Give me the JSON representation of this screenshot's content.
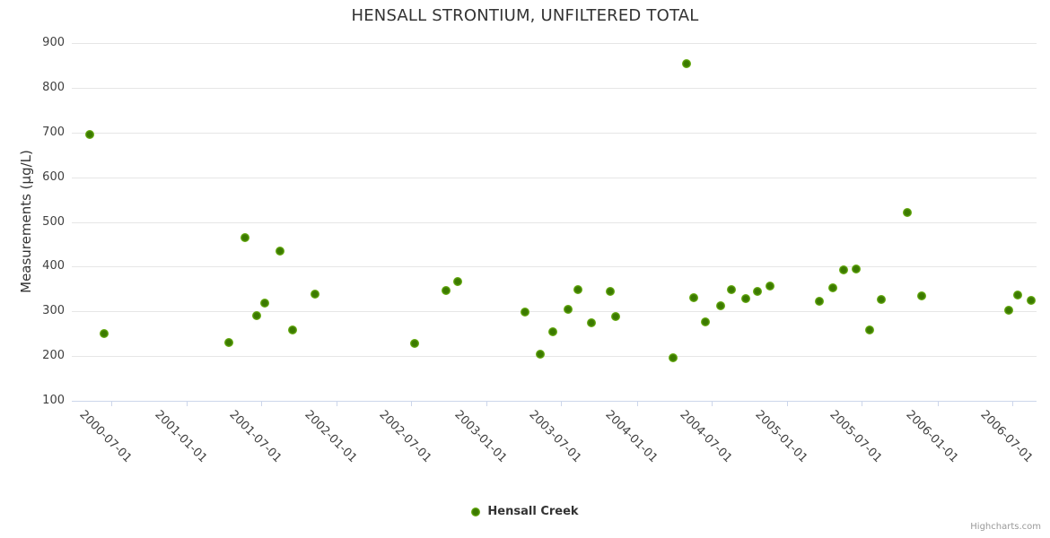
{
  "title": "HENSALL STRONTIUM, UNFILTERED TOTAL",
  "legend": {
    "series_label": "Hensall Creek"
  },
  "credits": "Highcharts.com",
  "colors": {
    "marker_center": "#3b7a00",
    "marker_edge": "#8ccd2a",
    "gridline": "#e6e6e6",
    "axis_line": "#ccd6eb",
    "title_text": "#333333",
    "tick_text": "#404040"
  },
  "chart_data": {
    "type": "scatter",
    "title": "HENSALL STRONTIUM, UNFILTERED TOTAL",
    "xlabel": "",
    "ylabel": "Measurements (µg/L)",
    "legend_position": "bottom-center",
    "grid": "horizontal-only",
    "x_axis": {
      "type": "datetime",
      "min": "2000-03-28",
      "max": "2006-08-30",
      "label_rotation_deg": 45,
      "tick_labels": [
        "2000-07-01",
        "2001-01-01",
        "2001-07-01",
        "2002-01-01",
        "2002-07-01",
        "2003-01-01",
        "2003-07-01",
        "2004-01-01",
        "2004-07-01",
        "2005-01-01",
        "2005-07-01",
        "2006-01-01",
        "2006-07-01"
      ]
    },
    "y_axis": {
      "min": 100,
      "max": 900,
      "tick_interval": 100,
      "tick_labels": [
        "900",
        "800",
        "700",
        "600",
        "500",
        "400",
        "300",
        "200",
        "100"
      ]
    },
    "series": [
      {
        "name": "Hensall Creek",
        "points": [
          {
            "date": "2000-05-10",
            "value": 695
          },
          {
            "date": "2000-06-15",
            "value": 251
          },
          {
            "date": "2001-04-14",
            "value": 230
          },
          {
            "date": "2001-05-23",
            "value": 464
          },
          {
            "date": "2001-06-21",
            "value": 290
          },
          {
            "date": "2001-07-10",
            "value": 318
          },
          {
            "date": "2001-08-16",
            "value": 435
          },
          {
            "date": "2001-09-16",
            "value": 259
          },
          {
            "date": "2001-11-10",
            "value": 339
          },
          {
            "date": "2002-07-10",
            "value": 228
          },
          {
            "date": "2002-09-24",
            "value": 347
          },
          {
            "date": "2002-10-23",
            "value": 367
          },
          {
            "date": "2003-04-03",
            "value": 298
          },
          {
            "date": "2003-05-11",
            "value": 205
          },
          {
            "date": "2003-06-10",
            "value": 255
          },
          {
            "date": "2003-07-17",
            "value": 305
          },
          {
            "date": "2003-08-11",
            "value": 349
          },
          {
            "date": "2003-09-13",
            "value": 275
          },
          {
            "date": "2003-10-28",
            "value": 345
          },
          {
            "date": "2003-11-10",
            "value": 288
          },
          {
            "date": "2004-03-30",
            "value": 197
          },
          {
            "date": "2004-05-01",
            "value": 853
          },
          {
            "date": "2004-05-19",
            "value": 330
          },
          {
            "date": "2004-06-16",
            "value": 277
          },
          {
            "date": "2004-07-22",
            "value": 313
          },
          {
            "date": "2004-08-18",
            "value": 348
          },
          {
            "date": "2004-09-22",
            "value": 329
          },
          {
            "date": "2004-10-21",
            "value": 344
          },
          {
            "date": "2004-11-19",
            "value": 356
          },
          {
            "date": "2005-03-19",
            "value": 322
          },
          {
            "date": "2005-04-21",
            "value": 352
          },
          {
            "date": "2005-05-18",
            "value": 393
          },
          {
            "date": "2005-06-17",
            "value": 394
          },
          {
            "date": "2005-07-21",
            "value": 259
          },
          {
            "date": "2005-08-18",
            "value": 326
          },
          {
            "date": "2005-10-20",
            "value": 522
          },
          {
            "date": "2005-11-23",
            "value": 334
          },
          {
            "date": "2006-06-24",
            "value": 303
          },
          {
            "date": "2006-07-15",
            "value": 337
          },
          {
            "date": "2006-08-17",
            "value": 324
          }
        ]
      }
    ]
  }
}
